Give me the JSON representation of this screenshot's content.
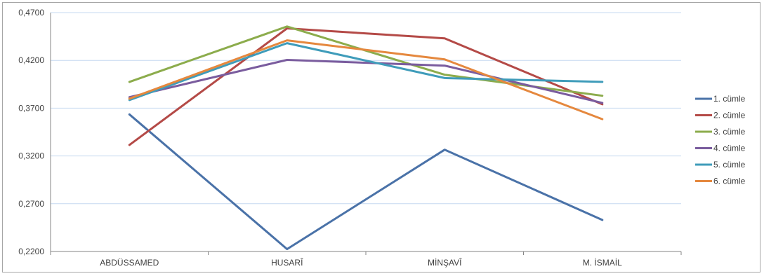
{
  "chart_data": {
    "type": "line",
    "categories": [
      "ABDÜSSAMED",
      "HUSARÎ",
      "MİNŞAVÎ",
      "M. İSMAİL"
    ],
    "ylim": [
      0.22,
      0.47
    ],
    "yticks": [
      "0,2200",
      "0,2700",
      "0,3200",
      "0,3700",
      "0,4200",
      "0,4700"
    ],
    "ytick_values": [
      0.22,
      0.27,
      0.32,
      0.37,
      0.42,
      0.47
    ],
    "grid": true,
    "legend_position": "right",
    "series": [
      {
        "name": "1. cümle",
        "color": "#4a72a8",
        "values": [
          0.3635,
          0.2225,
          0.3265,
          0.253
        ]
      },
      {
        "name": "2. cümle",
        "color": "#b44a47",
        "values": [
          0.3315,
          0.4535,
          0.443,
          0.374
        ]
      },
      {
        "name": "3. cümle",
        "color": "#8cac4c",
        "values": [
          0.3975,
          0.4555,
          0.405,
          0.383
        ]
      },
      {
        "name": "4. cümle",
        "color": "#7a5c9e",
        "values": [
          0.3815,
          0.4205,
          0.4145,
          0.3755
        ]
      },
      {
        "name": "5. cümle",
        "color": "#3f9cba",
        "values": [
          0.3785,
          0.438,
          0.4015,
          0.3975
        ]
      },
      {
        "name": "6. cümle",
        "color": "#e5883e",
        "values": [
          0.38,
          0.441,
          0.421,
          0.3585
        ]
      }
    ]
  }
}
